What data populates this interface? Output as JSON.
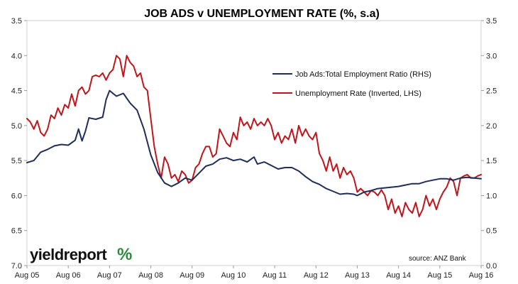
{
  "chart_data": {
    "type": "line",
    "title": "JOB ADS v UNEMPLOYMENT RATE (%, s.a)",
    "x_ticks": [
      "Aug 05",
      "Aug 06",
      "Aug 07",
      "Aug 08",
      "Aug 09",
      "Aug 10",
      "Aug 11",
      "Aug 12",
      "Aug 13",
      "Aug 14",
      "Aug 15",
      "Aug 16"
    ],
    "left_axis": {
      "label": "",
      "inverted": true,
      "ylim": [
        3.5,
        7.0
      ],
      "ticks": [
        "3.5",
        "4.0",
        "4.5",
        "5.0",
        "5.5",
        "6.0",
        "6.5",
        "7.0"
      ]
    },
    "right_axis": {
      "label": "",
      "ylim": [
        0.0,
        3.5
      ],
      "ticks": [
        "0.0",
        "0.5",
        "1.0",
        "1.5",
        "2.0",
        "2.5",
        "3.0",
        "3.5"
      ]
    },
    "legend_position": "upper-right",
    "grid": false,
    "series": [
      {
        "name": "Job Ads:Total Employment Ratio (RHS)",
        "axis": "right",
        "color": "#1f2d5a",
        "points": [
          [
            "2005-08",
            1.47
          ],
          [
            "2005-10",
            1.5
          ],
          [
            "2005-12",
            1.62
          ],
          [
            "2006-02",
            1.66
          ],
          [
            "2006-04",
            1.71
          ],
          [
            "2006-06",
            1.73
          ],
          [
            "2006-08",
            1.72
          ],
          [
            "2006-10",
            1.79
          ],
          [
            "2006-11",
            1.95
          ],
          [
            "2006-12",
            1.78
          ],
          [
            "2007-01",
            1.92
          ],
          [
            "2007-02",
            2.11
          ],
          [
            "2007-04",
            2.09
          ],
          [
            "2007-06",
            2.12
          ],
          [
            "2007-07",
            2.37
          ],
          [
            "2007-08",
            2.5
          ],
          [
            "2007-10",
            2.42
          ],
          [
            "2007-12",
            2.46
          ],
          [
            "2008-02",
            2.32
          ],
          [
            "2008-04",
            2.22
          ],
          [
            "2008-06",
            1.95
          ],
          [
            "2008-08",
            1.58
          ],
          [
            "2008-10",
            1.33
          ],
          [
            "2008-12",
            1.18
          ],
          [
            "2009-02",
            1.13
          ],
          [
            "2009-04",
            1.18
          ],
          [
            "2009-06",
            1.25
          ],
          [
            "2009-08",
            1.22
          ],
          [
            "2009-10",
            1.32
          ],
          [
            "2009-12",
            1.42
          ],
          [
            "2010-02",
            1.45
          ],
          [
            "2010-04",
            1.52
          ],
          [
            "2010-06",
            1.54
          ],
          [
            "2010-08",
            1.5
          ],
          [
            "2010-10",
            1.52
          ],
          [
            "2010-12",
            1.48
          ],
          [
            "2011-02",
            1.55
          ],
          [
            "2011-03",
            1.45
          ],
          [
            "2011-05",
            1.48
          ],
          [
            "2011-07",
            1.43
          ],
          [
            "2011-09",
            1.38
          ],
          [
            "2011-11",
            1.4
          ],
          [
            "2012-01",
            1.4
          ],
          [
            "2012-03",
            1.35
          ],
          [
            "2012-05",
            1.27
          ],
          [
            "2012-07",
            1.2
          ],
          [
            "2012-09",
            1.16
          ],
          [
            "2012-11",
            1.1
          ],
          [
            "2013-01",
            1.06
          ],
          [
            "2013-03",
            1.02
          ],
          [
            "2013-05",
            1.03
          ],
          [
            "2013-07",
            1.02
          ],
          [
            "2013-08",
            1.0
          ],
          [
            "2013-10",
            1.05
          ],
          [
            "2013-12",
            1.07
          ],
          [
            "2014-02",
            1.1
          ],
          [
            "2014-04",
            1.11
          ],
          [
            "2014-06",
            1.12
          ],
          [
            "2014-08",
            1.13
          ],
          [
            "2014-10",
            1.15
          ],
          [
            "2014-12",
            1.17
          ],
          [
            "2015-02",
            1.17
          ],
          [
            "2015-04",
            1.2
          ],
          [
            "2015-06",
            1.22
          ],
          [
            "2015-08",
            1.24
          ],
          [
            "2015-10",
            1.24
          ],
          [
            "2015-12",
            1.22
          ],
          [
            "2016-02",
            1.25
          ],
          [
            "2016-04",
            1.26
          ],
          [
            "2016-06",
            1.25
          ],
          [
            "2016-08",
            1.24
          ]
        ]
      },
      {
        "name": "Unemployment Rate (Inverted, LHS)",
        "axis": "left",
        "color": "#c0151b",
        "points": [
          [
            "2005-08",
            4.9
          ],
          [
            "2005-09",
            4.95
          ],
          [
            "2005-10",
            5.05
          ],
          [
            "2005-11",
            4.93
          ],
          [
            "2005-12",
            5.1
          ],
          [
            "2006-01",
            5.15
          ],
          [
            "2006-02",
            5.05
          ],
          [
            "2006-03",
            4.85
          ],
          [
            "2006-04",
            4.9
          ],
          [
            "2006-05",
            4.75
          ],
          [
            "2006-06",
            4.85
          ],
          [
            "2006-07",
            4.7
          ],
          [
            "2006-08",
            4.75
          ],
          [
            "2006-09",
            4.55
          ],
          [
            "2006-10",
            4.72
          ],
          [
            "2006-11",
            4.5
          ],
          [
            "2006-12",
            4.45
          ],
          [
            "2007-01",
            4.55
          ],
          [
            "2007-02",
            4.5
          ],
          [
            "2007-03",
            4.3
          ],
          [
            "2007-04",
            4.28
          ],
          [
            "2007-05",
            4.3
          ],
          [
            "2007-06",
            4.25
          ],
          [
            "2007-07",
            4.35
          ],
          [
            "2007-08",
            4.25
          ],
          [
            "2007-09",
            4.2
          ],
          [
            "2007-10",
            4.0
          ],
          [
            "2007-11",
            4.05
          ],
          [
            "2007-12",
            4.3
          ],
          [
            "2008-01",
            4.0
          ],
          [
            "2008-02",
            4.1
          ],
          [
            "2008-03",
            4.15
          ],
          [
            "2008-04",
            4.3
          ],
          [
            "2008-05",
            4.25
          ],
          [
            "2008-06",
            4.45
          ],
          [
            "2008-07",
            4.5
          ],
          [
            "2008-08",
            4.9
          ],
          [
            "2008-09",
            5.3
          ],
          [
            "2008-10",
            5.55
          ],
          [
            "2008-11",
            5.75
          ],
          [
            "2008-12",
            5.45
          ],
          [
            "2009-01",
            5.55
          ],
          [
            "2009-02",
            5.75
          ],
          [
            "2009-03",
            5.7
          ],
          [
            "2009-04",
            5.8
          ],
          [
            "2009-05",
            5.65
          ],
          [
            "2009-06",
            5.7
          ],
          [
            "2009-07",
            5.82
          ],
          [
            "2009-08",
            5.78
          ],
          [
            "2009-09",
            5.6
          ],
          [
            "2009-10",
            5.55
          ],
          [
            "2009-11",
            5.4
          ],
          [
            "2009-12",
            5.3
          ],
          [
            "2010-01",
            5.3
          ],
          [
            "2010-02",
            5.45
          ],
          [
            "2010-03",
            5.4
          ],
          [
            "2010-04",
            5.05
          ],
          [
            "2010-05",
            5.15
          ],
          [
            "2010-06",
            5.25
          ],
          [
            "2010-07",
            5.3
          ],
          [
            "2010-08",
            5.1
          ],
          [
            "2010-09",
            5.2
          ],
          [
            "2010-10",
            4.88
          ],
          [
            "2010-11",
            5.0
          ],
          [
            "2010-12",
            4.95
          ],
          [
            "2011-01",
            5.05
          ],
          [
            "2011-02",
            4.9
          ],
          [
            "2011-03",
            5.0
          ],
          [
            "2011-04",
            4.95
          ],
          [
            "2011-05",
            5.0
          ],
          [
            "2011-06",
            4.9
          ],
          [
            "2011-07",
            5.0
          ],
          [
            "2011-08",
            5.2
          ],
          [
            "2011-09",
            5.1
          ],
          [
            "2011-10",
            5.25
          ],
          [
            "2011-11",
            5.15
          ],
          [
            "2011-12",
            5.2
          ],
          [
            "2012-01",
            5.05
          ],
          [
            "2012-02",
            5.25
          ],
          [
            "2012-03",
            5.0
          ],
          [
            "2012-04",
            5.15
          ],
          [
            "2012-05",
            5.05
          ],
          [
            "2012-06",
            5.15
          ],
          [
            "2012-07",
            5.2
          ],
          [
            "2012-08",
            5.1
          ],
          [
            "2012-09",
            5.4
          ],
          [
            "2012-10",
            5.5
          ],
          [
            "2012-11",
            5.65
          ],
          [
            "2012-12",
            5.45
          ],
          [
            "2013-01",
            5.65
          ],
          [
            "2013-02",
            5.55
          ],
          [
            "2013-03",
            5.75
          ],
          [
            "2013-04",
            5.6
          ],
          [
            "2013-05",
            5.7
          ],
          [
            "2013-06",
            5.65
          ],
          [
            "2013-07",
            5.75
          ],
          [
            "2013-08",
            5.95
          ],
          [
            "2013-09",
            5.9
          ],
          [
            "2013-10",
            5.95
          ],
          [
            "2013-11",
            6.0
          ],
          [
            "2013-12",
            5.93
          ],
          [
            "2014-01",
            5.95
          ],
          [
            "2014-02",
            6.0
          ],
          [
            "2014-03",
            5.92
          ],
          [
            "2014-04",
            6.0
          ],
          [
            "2014-05",
            6.2
          ],
          [
            "2014-06",
            6.05
          ],
          [
            "2014-07",
            6.25
          ],
          [
            "2014-08",
            6.15
          ],
          [
            "2014-09",
            6.3
          ],
          [
            "2014-10",
            6.1
          ],
          [
            "2014-11",
            6.2
          ],
          [
            "2014-12",
            6.25
          ],
          [
            "2015-01",
            6.1
          ],
          [
            "2015-02",
            6.3
          ],
          [
            "2015-03",
            6.2
          ],
          [
            "2015-04",
            6.0
          ],
          [
            "2015-05",
            6.15
          ],
          [
            "2015-06",
            6.05
          ],
          [
            "2015-07",
            6.2
          ],
          [
            "2015-08",
            6.05
          ],
          [
            "2015-09",
            5.95
          ],
          [
            "2015-10",
            5.88
          ],
          [
            "2015-11",
            5.75
          ],
          [
            "2015-12",
            5.8
          ],
          [
            "2016-01",
            6.0
          ],
          [
            "2016-02",
            5.75
          ],
          [
            "2016-03",
            5.72
          ],
          [
            "2016-04",
            5.7
          ],
          [
            "2016-05",
            5.75
          ],
          [
            "2016-06",
            5.75
          ],
          [
            "2016-07",
            5.72
          ],
          [
            "2016-08",
            5.7
          ]
        ]
      }
    ]
  },
  "logo": {
    "text": "yieldreport",
    "symbol": "%"
  },
  "source": "source: ANZ Bank"
}
